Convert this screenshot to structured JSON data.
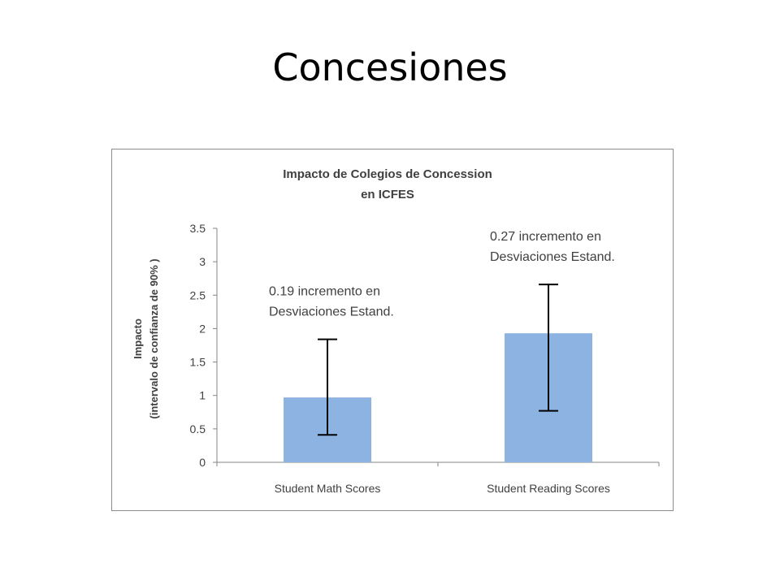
{
  "slide": {
    "title": "Concesiones"
  },
  "colors": {
    "bar": "#8db3e2",
    "error_bar": "#000000",
    "axis": "#868686",
    "text": "#404040"
  },
  "chart_data": {
    "type": "bar",
    "title_lines": [
      "Impacto de Colegios de Concession",
      "en ICFES"
    ],
    "ylabel_lines": [
      "Impacto",
      "(intervalo de confianza de 90% )"
    ],
    "xlabel": "",
    "categories": [
      "Student Math Scores",
      "Student Reading Scores"
    ],
    "values": [
      0.97,
      1.93
    ],
    "error_low": [
      0.41,
      0.77
    ],
    "error_high": [
      1.84,
      2.66
    ],
    "ylim": [
      0,
      3.5
    ],
    "yticks": [
      0,
      0.5,
      1,
      1.5,
      2,
      2.5,
      3,
      3.5
    ],
    "ytick_labels": [
      "0",
      "0.5",
      "1",
      "1.5",
      "2",
      "2.5",
      "3",
      "3.5"
    ],
    "grid": false,
    "legend": "none",
    "annotations": [
      {
        "lines": [
          "0.19 incremento en",
          "Desviaciones Estand."
        ],
        "category": 0
      },
      {
        "lines": [
          "0.27 incremento en",
          "Desviaciones Estand."
        ],
        "category": 1
      }
    ]
  }
}
